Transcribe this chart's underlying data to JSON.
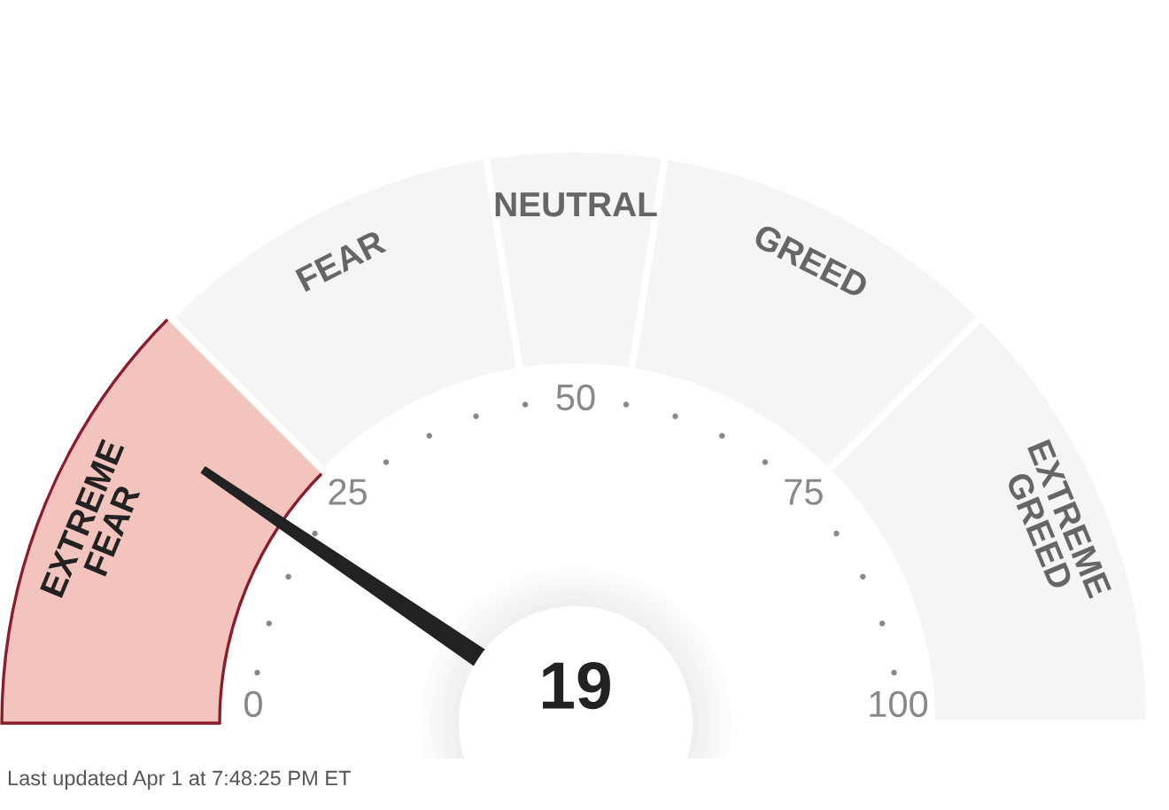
{
  "chart_data": {
    "type": "donut",
    "categories": [
      "EXTREME\nFEAR",
      "FEAR",
      "NEUTRAL",
      "GREED",
      "EXTREME\nGREED"
    ],
    "values": [
      25,
      20,
      10,
      20,
      25
    ],
    "colors": [
      "#f2c4bd",
      "#f5f5f5",
      "#f5f5f5",
      "#f5f5f5",
      "#f5f5f5"
    ],
    "needle": "EXTREME\nFEAR",
    "annotations": [
      "19",
      "0",
      "25",
      "50",
      "75",
      "100",
      "Last updated Apr 1 at 7:48:25 PM ET"
    ]
  }
}
